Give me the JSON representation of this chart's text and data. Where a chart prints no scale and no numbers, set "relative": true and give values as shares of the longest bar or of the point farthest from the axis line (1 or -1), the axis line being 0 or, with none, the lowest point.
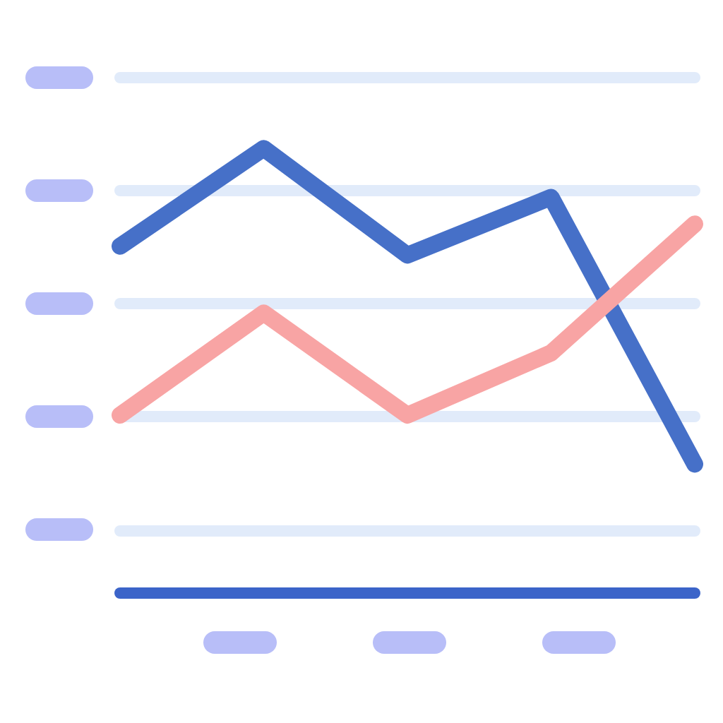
{
  "chart_data": {
    "type": "line",
    "categories": [
      null,
      null,
      null,
      null,
      null
    ],
    "relative": true,
    "series": [
      {
        "color": "#4670c8",
        "values": [
          0.78,
          1,
          0.76,
          0.89,
          0.29
        ]
      },
      {
        "color": "#f8a4a4",
        "values": [
          0.4,
          0.63,
          0.4,
          0.54,
          0.83
        ]
      }
    ],
    "grid": "y",
    "line_style": "solid"
  }
}
